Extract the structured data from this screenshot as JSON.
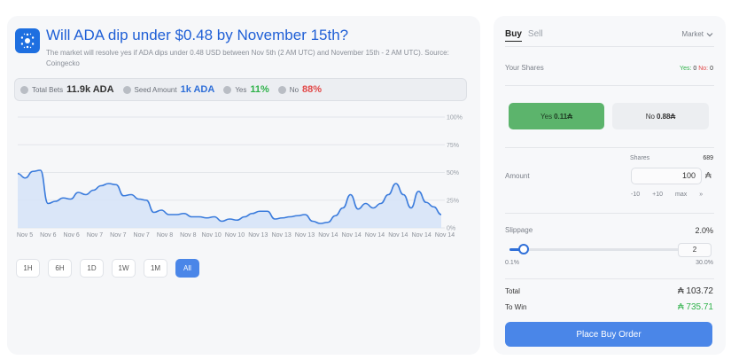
{
  "market": {
    "title": "Will ADA dip under $0.48 by November 15th?",
    "description": "The market will resolve yes if ADA dips under 0.48 USD between Nov 5th (2 AM UTC) and November 15th - 2 AM UTC). Source: Coingecko",
    "logo_icon": "cardano-icon"
  },
  "stats": {
    "total_bets_label": "Total Bets",
    "total_bets_value": "11.9k ADA",
    "seed_amount_label": "Seed Amount",
    "seed_amount_value": "1k ADA",
    "yes_label": "Yes",
    "yes_value": "11%",
    "no_label": "No",
    "no_value": "88%"
  },
  "chart_data": {
    "type": "area",
    "y_ticks": [
      "100%",
      "75%",
      "50%",
      "25%",
      "0%"
    ],
    "ylim": [
      0,
      100
    ],
    "x_ticks": [
      "Nov 5",
      "Nov 6",
      "Nov 6",
      "Nov 7",
      "Nov 7",
      "Nov 7",
      "Nov 8",
      "Nov 8",
      "Nov 10",
      "Nov 10",
      "Nov 13",
      "Nov 13",
      "Nov 13",
      "Nov 14",
      "Nov 14",
      "Nov 14",
      "Nov 14",
      "Nov 14",
      "Nov 14"
    ],
    "color": "#3a7bdc",
    "fill_color": "#d5e3f8",
    "series": [
      {
        "values": [
          49,
          45,
          51,
          52,
          22,
          24,
          27,
          26,
          32,
          30,
          34,
          38,
          40,
          39,
          29,
          30,
          26,
          25,
          14,
          16,
          12,
          12,
          13,
          10,
          10,
          9,
          10,
          6,
          8,
          7,
          10,
          13,
          15,
          15,
          8,
          9,
          10,
          11,
          12,
          6,
          4,
          5,
          11,
          18,
          30,
          17,
          22,
          18,
          22,
          30,
          40,
          30,
          18,
          33,
          23,
          19,
          12
        ]
      }
    ]
  },
  "ranges": [
    "1H",
    "6H",
    "1D",
    "1W",
    "1M",
    "All"
  ],
  "active_range": "All",
  "order": {
    "tab_buy": "Buy",
    "tab_sell": "Sell",
    "market_select": "Market",
    "your_shares_label": "Your Shares",
    "yes_shares_label": "Yes:",
    "yes_shares_value": "0",
    "no_shares_label": "No:",
    "no_shares_value": "0",
    "yes_button_label": "Yes",
    "yes_button_price": "0.11₳",
    "no_button_label": "No",
    "no_button_price": "0.88₳",
    "shares_label": "Shares",
    "shares_value": "689",
    "amount_label": "Amount",
    "amount_value": "100",
    "currency_symbol": "₳",
    "quick_amounts": [
      "-10",
      "+10",
      "max",
      "»"
    ],
    "slippage_label": "Slippage",
    "slippage_value": "2.0%",
    "slippage_input": "2",
    "slippage_fraction": 0.07,
    "slippage_min": "0.1%",
    "slippage_max": "30.0%",
    "total_label": "Total",
    "total_value": "₳ 103.72",
    "to_win_label": "To Win",
    "to_win_value": "₳ 735.71",
    "place_button_label": "Place Buy Order"
  }
}
